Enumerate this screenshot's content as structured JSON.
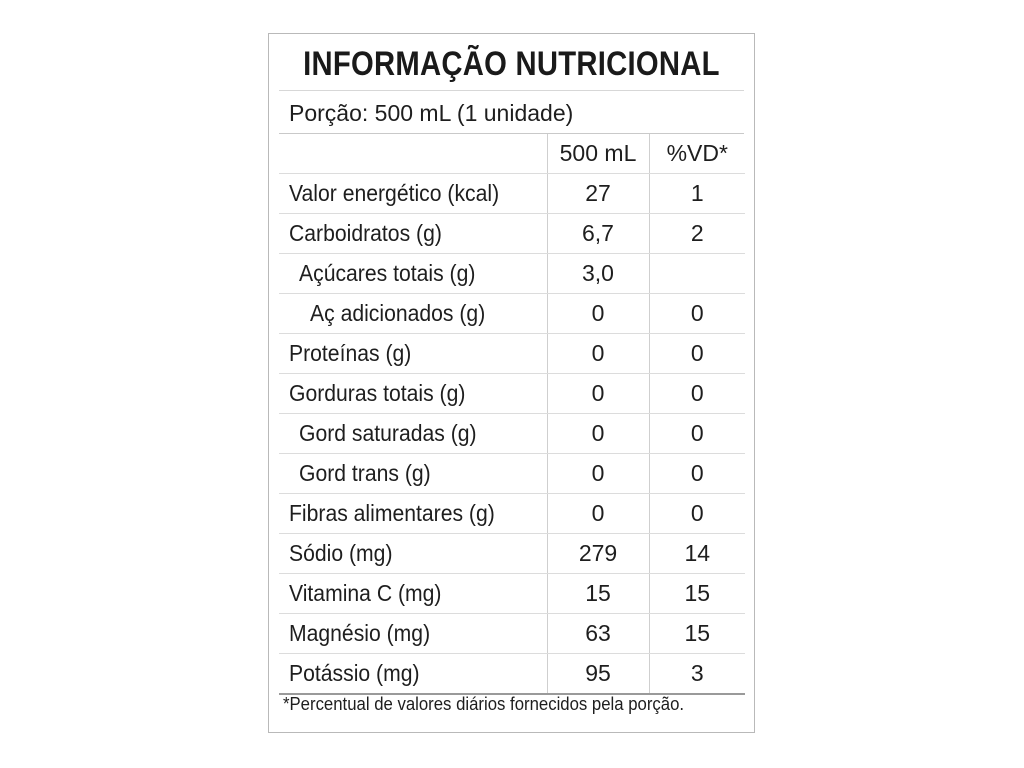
{
  "label": {
    "title": "INFORMAÇÃO NUTRICIONAL",
    "portion": "Porção: 500 mL (1 unidade)",
    "columns": {
      "amount": "500 mL",
      "dv": "%VD*"
    },
    "rows": [
      {
        "name": "Valor energético (kcal)",
        "amount": "27",
        "dv": "1",
        "indent": 0
      },
      {
        "name": "Carboidratos (g)",
        "amount": "6,7",
        "dv": "2",
        "indent": 0
      },
      {
        "name": "Açúcares totais (g)",
        "amount": "3,0",
        "dv": "",
        "indent": 1
      },
      {
        "name": "Aç adicionados (g)",
        "amount": "0",
        "dv": "0",
        "indent": 2
      },
      {
        "name": "Proteínas (g)",
        "amount": "0",
        "dv": "0",
        "indent": 0
      },
      {
        "name": "Gorduras totais (g)",
        "amount": "0",
        "dv": "0",
        "indent": 0
      },
      {
        "name": "Gord saturadas (g)",
        "amount": "0",
        "dv": "0",
        "indent": 1
      },
      {
        "name": "Gord trans (g)",
        "amount": "0",
        "dv": "0",
        "indent": 1
      },
      {
        "name": "Fibras alimentares (g)",
        "amount": "0",
        "dv": "0",
        "indent": 0
      },
      {
        "name": "Sódio (mg)",
        "amount": "279",
        "dv": "14",
        "indent": 0
      },
      {
        "name": "Vitamina C (mg)",
        "amount": "15",
        "dv": "15",
        "indent": 0
      },
      {
        "name": "Magnésio (mg)",
        "amount": "63",
        "dv": "15",
        "indent": 0
      },
      {
        "name": "Potássio (mg)",
        "amount": "95",
        "dv": "3",
        "indent": 0
      }
    ],
    "footnote": "*Percentual de valores diários fornecidos pela porção."
  }
}
